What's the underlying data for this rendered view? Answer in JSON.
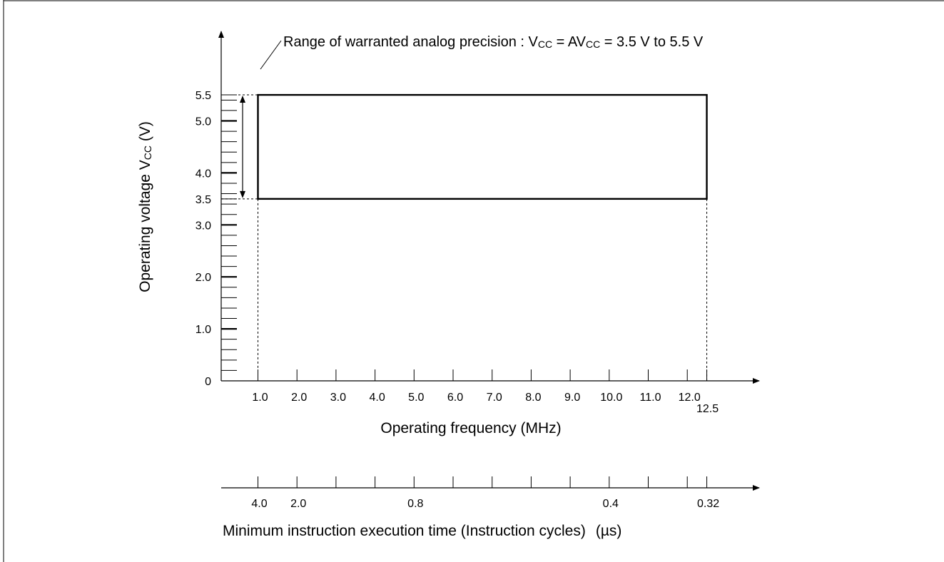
{
  "chart_data": {
    "type": "area",
    "title": "",
    "annotation": {
      "text_main": "Range of warranted analog precision : V",
      "text_sub1": "CC",
      "text_mid": " = AV",
      "text_sub2": "CC",
      "text_end": " = 3.5 V to 5.5 V"
    },
    "ylabel": {
      "main": "Operating voltage V",
      "sub": "CC",
      "unit": " (V)"
    },
    "xlabel": "Operating frequency (MHz)",
    "x2label": {
      "main": "Minimum instruction execution time (Instruction cycles)",
      "unit": "(µs)"
    },
    "ylim": [
      0,
      5.5
    ],
    "xlim": [
      0,
      12.5
    ],
    "y_ticks": [
      {
        "value": 0,
        "label": "0"
      },
      {
        "value": 1.0,
        "label": "1.0"
      },
      {
        "value": 2.0,
        "label": "2.0"
      },
      {
        "value": 3.0,
        "label": "3.0"
      },
      {
        "value": 3.5,
        "label": "3.5"
      },
      {
        "value": 4.0,
        "label": "4.0"
      },
      {
        "value": 5.0,
        "label": "5.0"
      },
      {
        "value": 5.5,
        "label": "5.5"
      }
    ],
    "y_minor_step": 0.2,
    "x_ticks": [
      {
        "value": 1.0,
        "label": "1.0"
      },
      {
        "value": 2.0,
        "label": "2.0"
      },
      {
        "value": 3.0,
        "label": "3.0"
      },
      {
        "value": 4.0,
        "label": "4.0"
      },
      {
        "value": 5.0,
        "label": "5.0"
      },
      {
        "value": 6.0,
        "label": "6.0"
      },
      {
        "value": 7.0,
        "label": "7.0"
      },
      {
        "value": 8.0,
        "label": "8.0"
      },
      {
        "value": 9.0,
        "label": "9.0"
      },
      {
        "value": 10.0,
        "label": "10.0"
      },
      {
        "value": 11.0,
        "label": "11.0"
      },
      {
        "value": 12.0,
        "label": "12.0"
      },
      {
        "value": 12.5,
        "label": "12.5"
      }
    ],
    "x2_ticks": [
      {
        "value": 1.0,
        "label": "4.0"
      },
      {
        "value": 2.0,
        "label": "2.0"
      },
      {
        "value": 3.0,
        "label": ""
      },
      {
        "value": 4.0,
        "label": ""
      },
      {
        "value": 5.0,
        "label": "0.8"
      },
      {
        "value": 6.0,
        "label": ""
      },
      {
        "value": 7.0,
        "label": ""
      },
      {
        "value": 8.0,
        "label": ""
      },
      {
        "value": 9.0,
        "label": ""
      },
      {
        "value": 10.0,
        "label": "0.4"
      },
      {
        "value": 11.0,
        "label": ""
      },
      {
        "value": 12.0,
        "label": ""
      },
      {
        "value": 12.5,
        "label": "0.32"
      }
    ],
    "region": {
      "x_min": 1.0,
      "x_max": 12.5,
      "y_min": 3.5,
      "y_max": 5.5
    }
  }
}
